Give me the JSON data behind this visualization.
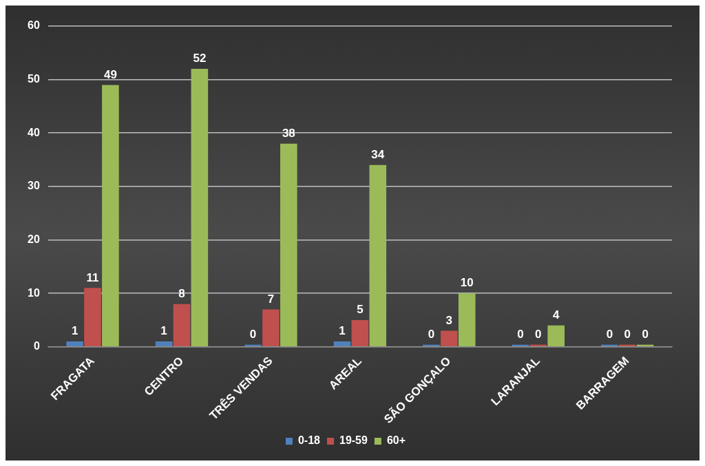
{
  "chart_data": {
    "type": "bar",
    "categories": [
      "FRAGATA",
      "CENTRO",
      "TRÊS VENDAS",
      "AREAL",
      "SÃO GONÇALO",
      "LARANJAL",
      "BARRAGEM"
    ],
    "series": [
      {
        "name": "0-18",
        "color": "#4f81bd",
        "values": [
          1,
          1,
          0,
          1,
          0,
          0,
          0
        ]
      },
      {
        "name": "19-59",
        "color": "#c0504d",
        "values": [
          11,
          8,
          7,
          5,
          3,
          0,
          0
        ]
      },
      {
        "name": "60+",
        "color": "#9bbb59",
        "values": [
          49,
          52,
          38,
          34,
          10,
          4,
          0
        ]
      }
    ],
    "ylim": [
      0,
      60
    ],
    "yticks": [
      0,
      10,
      20,
      30,
      40,
      50,
      60
    ],
    "grid": "y",
    "legend": "bottom",
    "data_labels": true
  }
}
